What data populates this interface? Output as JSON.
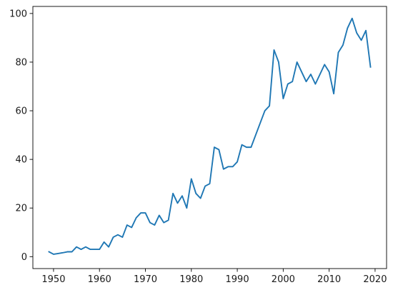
{
  "chart_data": {
    "type": "line",
    "title": "",
    "xlabel": "",
    "ylabel": "",
    "xlim": [
      1945.5,
      2022.5
    ],
    "ylim": [
      -4.9,
      102.9
    ],
    "grid": false,
    "legend": "none",
    "x_ticks": [
      1950,
      1960,
      1970,
      1980,
      1990,
      2000,
      2010,
      2020
    ],
    "x_tick_labels": [
      "1950",
      "1960",
      "1970",
      "1980",
      "1990",
      "2000",
      "2010",
      "2020"
    ],
    "y_ticks": [
      0,
      20,
      40,
      60,
      80,
      100
    ],
    "y_tick_labels": [
      "0",
      "20",
      "40",
      "60",
      "80",
      "100"
    ],
    "series": [
      {
        "color": "#1f77b4",
        "x": [
          1949,
          1950,
          1951,
          1952,
          1953,
          1954,
          1955,
          1956,
          1957,
          1958,
          1959,
          1960,
          1961,
          1962,
          1963,
          1964,
          1965,
          1966,
          1967,
          1968,
          1969,
          1970,
          1971,
          1972,
          1973,
          1974,
          1975,
          1976,
          1977,
          1978,
          1979,
          1980,
          1981,
          1982,
          1983,
          1984,
          1985,
          1986,
          1987,
          1988,
          1989,
          1990,
          1991,
          1992,
          1993,
          1994,
          1995,
          1996,
          1997,
          1998,
          1999,
          2000,
          2001,
          2002,
          2003,
          2004,
          2005,
          2006,
          2007,
          2008,
          2009,
          2010,
          2011,
          2012,
          2013,
          2014,
          2015,
          2016,
          2017,
          2018,
          2019
        ],
        "y": [
          2,
          1,
          1.3,
          1.6,
          2,
          2,
          4,
          3,
          4,
          3,
          3,
          3,
          6,
          4,
          8,
          9,
          8,
          13,
          12,
          16,
          18,
          18,
          14,
          13,
          17,
          14,
          15,
          26,
          22,
          25,
          20,
          32,
          26,
          24,
          29,
          30,
          45,
          44,
          36,
          37,
          37,
          39,
          46,
          45,
          45,
          50,
          55,
          60,
          62,
          85,
          80,
          65,
          71,
          72,
          80,
          76,
          72,
          75,
          71,
          75,
          79,
          76,
          67,
          84,
          87,
          94,
          98,
          92,
          89,
          93,
          78
        ]
      }
    ]
  }
}
